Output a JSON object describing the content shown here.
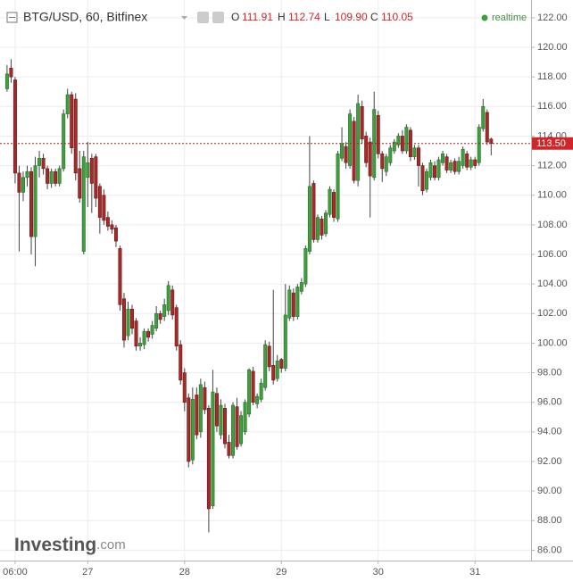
{
  "chart_data": {
    "type": "candlestick",
    "title": "BTG/USD, 60, Bitfinex",
    "ohlc_legend": [
      {
        "key": "O",
        "value": 111.91
      },
      {
        "key": "H",
        "value": 112.74
      },
      {
        "key": "L",
        "value": {
          "value": 109.9,
          "label": "109.90"
        }
      },
      {
        "key": "C",
        "value": 110.05
      }
    ],
    "status": "realtime",
    "logo": {
      "brand": "Investing",
      "suffix": ".com"
    },
    "categories": [
      null,
      null,
      "06:00",
      null,
      null,
      null,
      null,
      null,
      null,
      null,
      null,
      null,
      null,
      null,
      null,
      null,
      null,
      null,
      null,
      null,
      "27",
      null,
      null,
      null,
      null,
      null,
      null,
      null,
      null,
      null,
      null,
      null,
      null,
      null,
      null,
      null,
      null,
      null,
      null,
      null,
      null,
      null,
      null,
      null,
      "28",
      null,
      null,
      null,
      null,
      null,
      null,
      null,
      null,
      null,
      null,
      null,
      null,
      null,
      null,
      null,
      null,
      null,
      null,
      null,
      null,
      null,
      null,
      null,
      "29",
      null,
      null,
      null,
      null,
      null,
      null,
      null,
      null,
      null,
      null,
      null,
      null,
      null,
      null,
      null,
      null,
      null,
      null,
      null,
      null,
      null,
      null,
      null,
      "30",
      null,
      null,
      null,
      null,
      null,
      null,
      null,
      null,
      null,
      null,
      null,
      null,
      null,
      null,
      null,
      null,
      null,
      null,
      null,
      null,
      null,
      null,
      null,
      "31",
      null,
      null,
      null,
      null
    ],
    "open": [
      117.2,
      118.6,
      117.8,
      111.5,
      110.2,
      111.2,
      111.6,
      107.2,
      112.0,
      112.5,
      111.8,
      110.8,
      111.6,
      110.8,
      111.8,
      115.5,
      116.8,
      116.5,
      111.8,
      106.2,
      111.2,
      112.5,
      112.6,
      110.6,
      110.0,
      108.5,
      108.0,
      107.8,
      106.4,
      103.0,
      100.5,
      102.3,
      101.5,
      99.8,
      99.9,
      100.8,
      100.6,
      101.0,
      102.0,
      101.8,
      102.2,
      103.6,
      102.4,
      99.9,
      98.0,
      96.3,
      92.1,
      96.5,
      94.0,
      97.0,
      95.6,
      89.0,
      96.6,
      93.8,
      95.6,
      93.3,
      92.4,
      95.7,
      93.2,
      94.0,
      95.2,
      98.1,
      95.9,
      96.2,
      97.0,
      99.8,
      98.5,
      97.6,
      98.9,
      98.3,
      101.7,
      103.4,
      101.8,
      103.5,
      104.0,
      106.2,
      110.8,
      107.0,
      108.4,
      107.4,
      108.7,
      110.2,
      108.4,
      112.5,
      113.3,
      112.0,
      115.0,
      111.0,
      116.0,
      114.0,
      113.6,
      111.2,
      115.4,
      112.8,
      111.6,
      112.2,
      113.0,
      113.4,
      114.0,
      113.0,
      114.4,
      112.6,
      113.2,
      112.0,
      110.4,
      111.2,
      112.0,
      111.2,
      112.2,
      112.6,
      111.7,
      112.3,
      111.6,
      112.0,
      112.8,
      111.9,
      112.4,
      112.2,
      114.5,
      115.6,
      113.8
    ],
    "high": [
      118.8,
      119.2,
      118.0,
      112.0,
      111.6,
      112.0,
      111.9,
      112.6,
      113.0,
      112.8,
      112.0,
      111.8,
      111.8,
      112.0,
      115.8,
      117.2,
      117.0,
      116.9,
      113.0,
      113.0,
      113.6,
      112.8,
      112.8,
      110.8,
      110.4,
      108.9,
      108.3,
      108.0,
      106.6,
      103.4,
      102.8,
      102.6,
      101.7,
      100.4,
      101.0,
      101.0,
      101.5,
      102.5,
      102.2,
      103.0,
      104.2,
      103.9,
      102.6,
      100.2,
      98.3,
      96.6,
      97.0,
      97.0,
      97.6,
      97.4,
      95.8,
      98.2,
      97.0,
      96.2,
      95.9,
      93.8,
      96.0,
      96.3,
      95.4,
      96.2,
      98.3,
      98.4,
      96.6,
      97.6,
      100.2,
      100.1,
      103.6,
      99.2,
      99.0,
      104.0,
      103.9,
      103.7,
      104.0,
      104.4,
      106.6,
      114.0,
      111.0,
      108.7,
      108.6,
      109.0,
      110.6,
      110.4,
      113.0,
      114.6,
      113.6,
      115.8,
      115.3,
      116.8,
      116.4,
      114.3,
      113.9,
      117.0,
      115.7,
      113.0,
      112.8,
      113.4,
      113.8,
      114.2,
      114.4,
      114.8,
      114.6,
      113.4,
      113.4,
      112.2,
      111.8,
      112.4,
      112.3,
      112.6,
      113.0,
      112.8,
      112.4,
      112.5,
      112.6,
      113.3,
      113.0,
      112.6,
      112.6,
      114.8,
      116.5,
      115.8,
      113.9
    ],
    "low": [
      117.0,
      117.6,
      110.8,
      106.2,
      109.6,
      110.6,
      106.0,
      105.2,
      111.2,
      111.4,
      110.4,
      110.5,
      110.6,
      110.6,
      111.6,
      115.2,
      112.8,
      111.0,
      109.5,
      106.0,
      109.2,
      108.8,
      109.2,
      107.4,
      108.0,
      107.6,
      107.4,
      106.5,
      102.2,
      99.7,
      100.2,
      100.6,
      99.5,
      99.5,
      99.6,
      100.1,
      100.3,
      100.8,
      101.3,
      101.5,
      101.9,
      101.6,
      99.5,
      97.2,
      95.4,
      91.6,
      91.8,
      93.5,
      93.6,
      95.2,
      87.2,
      88.8,
      94.0,
      93.5,
      92.9,
      92.2,
      92.2,
      92.8,
      93.0,
      93.8,
      95.0,
      95.8,
      95.6,
      96.0,
      96.8,
      98.1,
      97.2,
      97.4,
      98.0,
      98.1,
      101.5,
      101.5,
      101.6,
      103.3,
      103.8,
      106.0,
      106.8,
      106.8,
      107.0,
      107.2,
      108.5,
      108.2,
      108.2,
      112.3,
      111.8,
      111.8,
      110.8,
      110.6,
      113.5,
      111.9,
      108.5,
      111.0,
      112.5,
      110.9,
      111.3,
      112.0,
      112.8,
      113.2,
      112.8,
      112.8,
      112.3,
      112.4,
      110.6,
      110.0,
      110.2,
      111.0,
      111.0,
      111.0,
      112.0,
      111.5,
      111.5,
      111.4,
      111.4,
      111.8,
      111.7,
      111.7,
      111.8,
      112.0,
      114.3,
      113.4,
      112.7
    ],
    "close": [
      118.2,
      118.0,
      111.5,
      110.2,
      111.2,
      111.6,
      107.2,
      112.0,
      112.5,
      111.8,
      110.8,
      111.6,
      110.8,
      111.8,
      115.5,
      116.8,
      113.2,
      111.5,
      109.8,
      112.6,
      112.2,
      110.8,
      109.8,
      108.5,
      108.3,
      107.9,
      107.7,
      106.9,
      102.6,
      100.2,
      102.3,
      101.0,
      99.8,
      100.0,
      100.8,
      100.4,
      101.2,
      102.0,
      101.6,
      102.6,
      103.9,
      101.9,
      99.8,
      97.5,
      96.0,
      92.0,
      96.2,
      93.8,
      97.2,
      95.5,
      88.8,
      96.7,
      94.4,
      95.8,
      93.2,
      92.4,
      95.8,
      93.0,
      95.1,
      96.0,
      98.2,
      96.0,
      96.4,
      97.3,
      99.9,
      98.4,
      97.5,
      98.8,
      98.3,
      101.9,
      103.6,
      101.8,
      103.8,
      104.1,
      106.4,
      110.6,
      107.0,
      108.5,
      107.3,
      108.8,
      110.4,
      108.5,
      112.8,
      113.5,
      112.2,
      115.5,
      111.0,
      116.2,
      113.8,
      112.2,
      111.3,
      115.8,
      112.8,
      111.8,
      112.6,
      113.2,
      113.6,
      114.0,
      113.0,
      114.6,
      112.6,
      113.2,
      112.0,
      110.3,
      111.6,
      112.2,
      111.2,
      112.4,
      112.8,
      111.7,
      112.2,
      111.6,
      112.3,
      113.1,
      111.9,
      112.4,
      112.0,
      114.6,
      116.0,
      113.6,
      113.5
    ],
    "ylim": [
      85.3,
      123.2
    ],
    "yticks": [
      {
        "value": 86,
        "label": "86.00"
      },
      {
        "value": 88,
        "label": "88.00"
      },
      {
        "value": 90,
        "label": "90.00"
      },
      {
        "value": 92,
        "label": "92.00"
      },
      {
        "value": 94,
        "label": "94.00"
      },
      {
        "value": 96,
        "label": "96.00"
      },
      {
        "value": 98,
        "label": "98.00"
      },
      {
        "value": 100,
        "label": "100.00"
      },
      {
        "value": 102,
        "label": "102.00"
      },
      {
        "value": 104,
        "label": "104.00"
      },
      {
        "value": 106,
        "label": "106.00"
      },
      {
        "value": 108,
        "label": "108.00"
      },
      {
        "value": 110,
        "label": "110.00"
      },
      {
        "value": 112,
        "label": "112.00"
      },
      {
        "value": 114,
        "label": "114.00"
      },
      {
        "value": 116,
        "label": "116.00"
      },
      {
        "value": 118,
        "label": "118.00"
      },
      {
        "value": 120,
        "label": "120.00"
      },
      {
        "value": 122,
        "label": "122.00"
      }
    ],
    "last_price": {
      "value": 113.5,
      "label": "113.50"
    },
    "up_color": "#3f9f3f",
    "down_color": "#a52a2a",
    "grid": true
  }
}
